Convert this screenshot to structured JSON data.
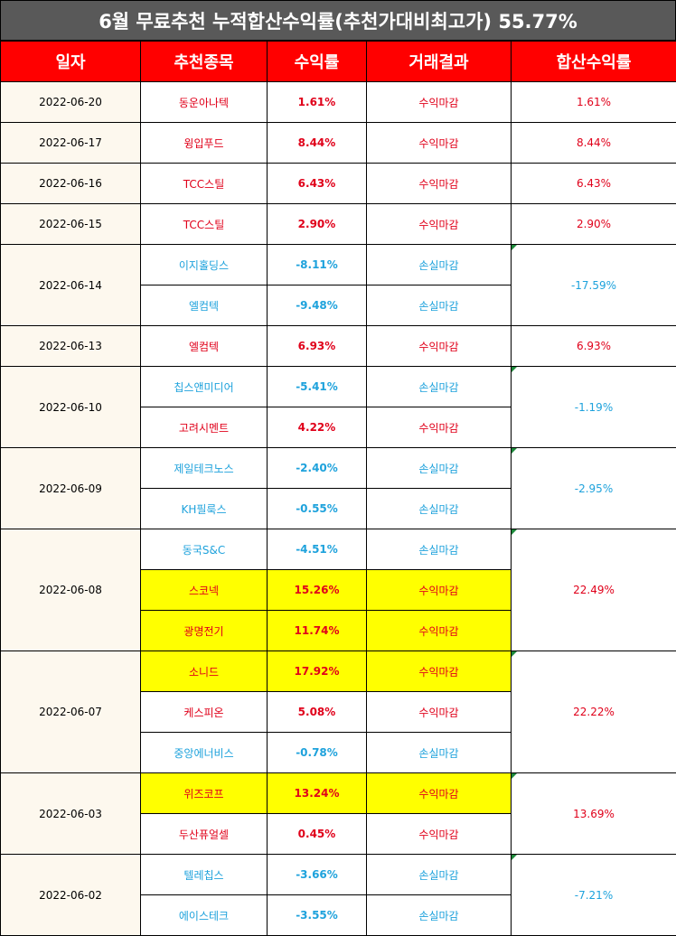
{
  "title": "6월 무료추천 누적합산수익률(추천가대비최고가) 55.77%",
  "headers": [
    "일자",
    "추천종목",
    "수익률",
    "거래결과",
    "합산수익률"
  ],
  "groups": [
    {
      "date": "2022-06-20",
      "total": "1.61%",
      "total_color": "red",
      "rows": [
        {
          "stock": "동운아나텍",
          "rate": "1.61%",
          "result": "수익마감",
          "color": "red",
          "highlight": false
        }
      ]
    },
    {
      "date": "2022-06-17",
      "total": "8.44%",
      "total_color": "red",
      "rows": [
        {
          "stock": "윙입푸드",
          "rate": "8.44%",
          "result": "수익마감",
          "color": "red",
          "highlight": false
        }
      ]
    },
    {
      "date": "2022-06-16",
      "total": "6.43%",
      "total_color": "red",
      "rows": [
        {
          "stock": "TCC스틸",
          "rate": "6.43%",
          "result": "수익마감",
          "color": "red",
          "highlight": false
        }
      ]
    },
    {
      "date": "2022-06-15",
      "total": "2.90%",
      "total_color": "red",
      "rows": [
        {
          "stock": "TCC스틸",
          "rate": "2.90%",
          "result": "수익마감",
          "color": "red",
          "highlight": false
        }
      ]
    },
    {
      "date": "2022-06-14",
      "total": "-17.59%",
      "total_color": "blue",
      "rows": [
        {
          "stock": "이지홀딩스",
          "rate": "-8.11%",
          "result": "손실마감",
          "color": "blue",
          "highlight": false
        },
        {
          "stock": "엘컴텍",
          "rate": "-9.48%",
          "result": "손실마감",
          "color": "blue",
          "highlight": false
        }
      ]
    },
    {
      "date": "2022-06-13",
      "total": "6.93%",
      "total_color": "red",
      "rows": [
        {
          "stock": "엘컴텍",
          "rate": "6.93%",
          "result": "수익마감",
          "color": "red",
          "highlight": false
        }
      ]
    },
    {
      "date": "2022-06-10",
      "total": "-1.19%",
      "total_color": "blue",
      "rows": [
        {
          "stock": "칩스앤미디어",
          "rate": "-5.41%",
          "result": "손실마감",
          "color": "blue",
          "highlight": false
        },
        {
          "stock": "고려시멘트",
          "rate": "4.22%",
          "result": "수익마감",
          "color": "red",
          "highlight": false
        }
      ]
    },
    {
      "date": "2022-06-09",
      "total": "-2.95%",
      "total_color": "blue",
      "rows": [
        {
          "stock": "제일테크노스",
          "rate": "-2.40%",
          "result": "손실마감",
          "color": "blue",
          "highlight": false
        },
        {
          "stock": "KH필룩스",
          "rate": "-0.55%",
          "result": "손실마감",
          "color": "blue",
          "highlight": false
        }
      ]
    },
    {
      "date": "2022-06-08",
      "total": "22.49%",
      "total_color": "red",
      "rows": [
        {
          "stock": "동국S&C",
          "rate": "-4.51%",
          "result": "손실마감",
          "color": "blue",
          "highlight": false
        },
        {
          "stock": "스코넥",
          "rate": "15.26%",
          "result": "수익마감",
          "color": "red",
          "highlight": true
        },
        {
          "stock": "광명전기",
          "rate": "11.74%",
          "result": "수익마감",
          "color": "red",
          "highlight": true
        }
      ]
    },
    {
      "date": "2022-06-07",
      "total": "22.22%",
      "total_color": "red",
      "rows": [
        {
          "stock": "소니드",
          "rate": "17.92%",
          "result": "수익마감",
          "color": "red",
          "highlight": true
        },
        {
          "stock": "케스피온",
          "rate": "5.08%",
          "result": "수익마감",
          "color": "red",
          "highlight": false
        },
        {
          "stock": "중앙에너비스",
          "rate": "-0.78%",
          "result": "손실마감",
          "color": "blue",
          "highlight": false
        }
      ]
    },
    {
      "date": "2022-06-03",
      "total": "13.69%",
      "total_color": "red",
      "rows": [
        {
          "stock": "위즈코프",
          "rate": "13.24%",
          "result": "수익마감",
          "color": "red",
          "highlight": true
        },
        {
          "stock": "두산퓨얼셀",
          "rate": "0.45%",
          "result": "수익마감",
          "color": "red",
          "highlight": false
        }
      ]
    },
    {
      "date": "2022-06-02",
      "total": "-7.21%",
      "total_color": "blue",
      "rows": [
        {
          "stock": "텔레칩스",
          "rate": "-3.66%",
          "result": "손실마감",
          "color": "blue",
          "highlight": false
        },
        {
          "stock": "에이스테크",
          "rate": "-3.55%",
          "result": "손실마감",
          "color": "blue",
          "highlight": false
        }
      ]
    }
  ]
}
